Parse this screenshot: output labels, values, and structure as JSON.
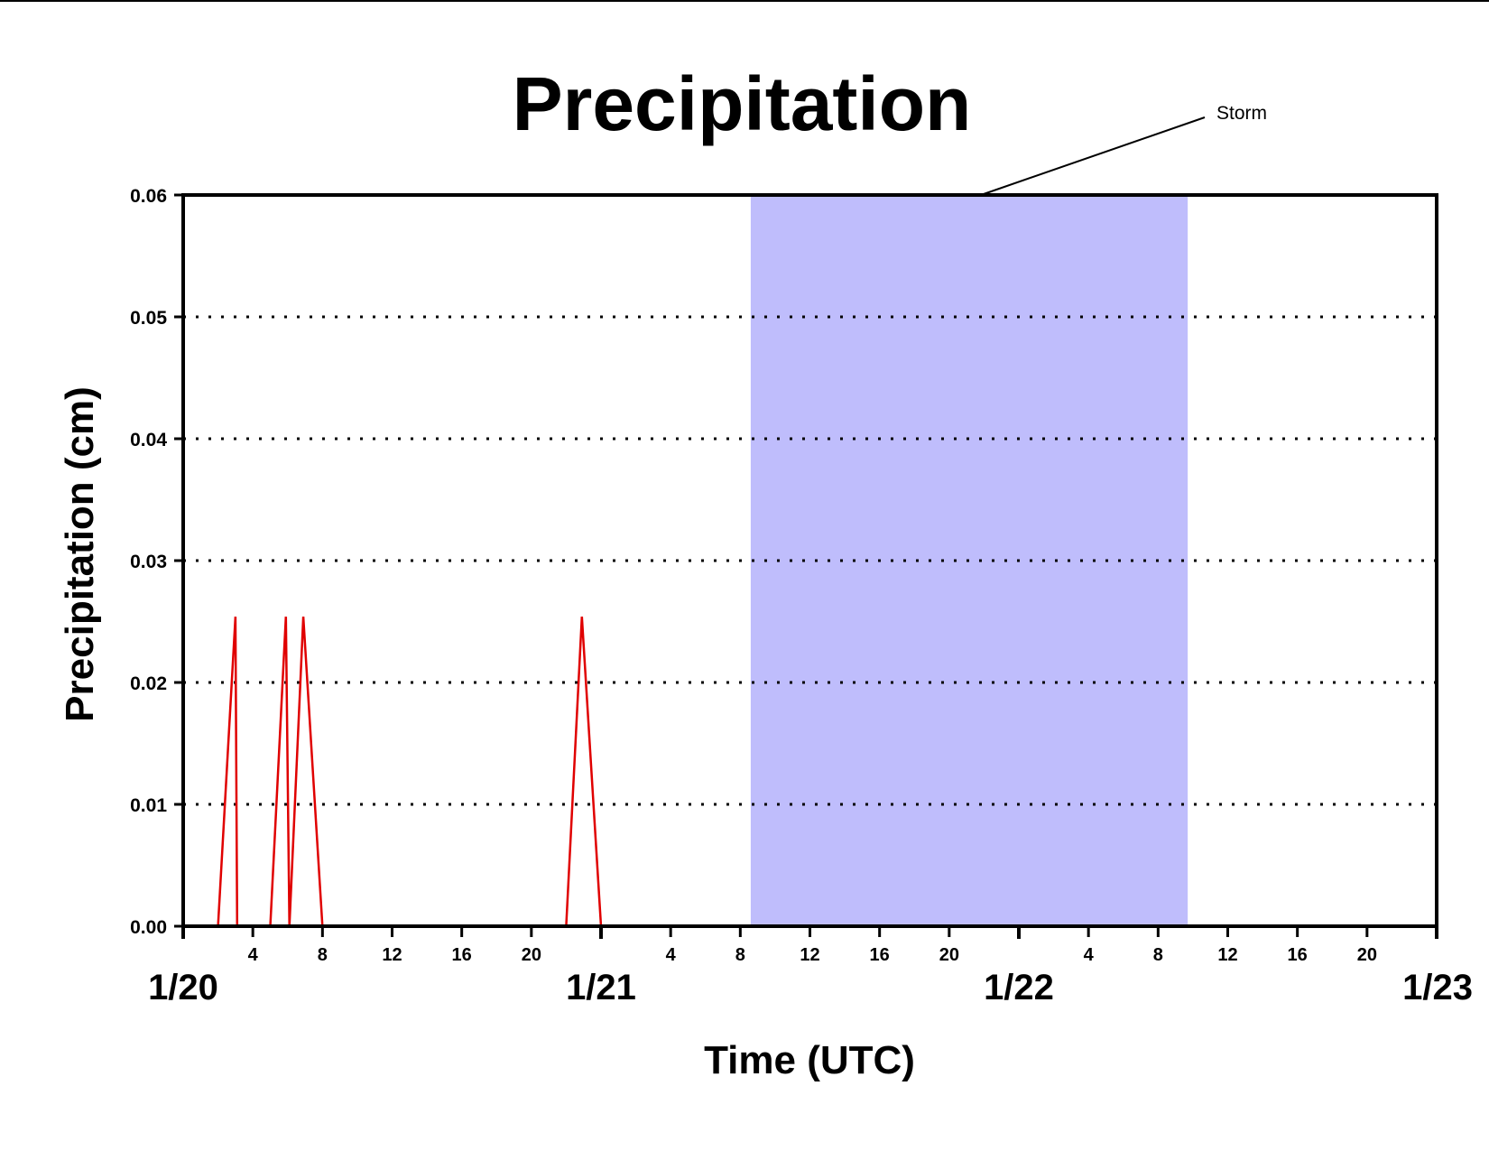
{
  "chart_data": {
    "type": "line",
    "title": "Precipitation",
    "xlabel": "Time (UTC)",
    "ylabel": "Precipitation (cm)",
    "x_unit": "hours",
    "xlim": [
      0,
      72
    ],
    "ylim": [
      0,
      0.06
    ],
    "y_ticks": [
      "0.00",
      "0.01",
      "0.02",
      "0.03",
      "0.04",
      "0.05",
      "0.06"
    ],
    "x_ticks_minor": [
      {
        "hour": 4,
        "label": "4"
      },
      {
        "hour": 8,
        "label": "8"
      },
      {
        "hour": 12,
        "label": "12"
      },
      {
        "hour": 16,
        "label": "16"
      },
      {
        "hour": 20,
        "label": "20"
      },
      {
        "hour": 28,
        "label": "4"
      },
      {
        "hour": 32,
        "label": "8"
      },
      {
        "hour": 36,
        "label": "12"
      },
      {
        "hour": 40,
        "label": "16"
      },
      {
        "hour": 44,
        "label": "20"
      },
      {
        "hour": 52,
        "label": "4"
      },
      {
        "hour": 56,
        "label": "8"
      },
      {
        "hour": 60,
        "label": "12"
      },
      {
        "hour": 64,
        "label": "16"
      },
      {
        "hour": 68,
        "label": "20"
      }
    ],
    "x_ticks_major": [
      {
        "hour": 0,
        "label": "1/20"
      },
      {
        "hour": 24,
        "label": "1/21"
      },
      {
        "hour": 48,
        "label": "1/22"
      },
      {
        "hour": 72,
        "label": "1/23"
      }
    ],
    "grid": "dotted horizontal",
    "series": [
      {
        "color": "#e00000",
        "points": [
          [
            0,
            0
          ],
          [
            2,
            0
          ],
          [
            3,
            0.0254
          ],
          [
            3.1,
            0
          ],
          [
            5,
            0
          ],
          [
            5.9,
            0.0254
          ],
          [
            6.1,
            0
          ],
          [
            6.9,
            0.0254
          ],
          [
            8,
            0
          ],
          [
            22,
            0
          ],
          [
            22.9,
            0.0254
          ],
          [
            24,
            0
          ],
          [
            72,
            0
          ]
        ]
      }
    ],
    "shaded_region": {
      "label": "Storm",
      "x_start": 32.6,
      "x_end": 57.7,
      "color": "#bfbdfc"
    }
  }
}
